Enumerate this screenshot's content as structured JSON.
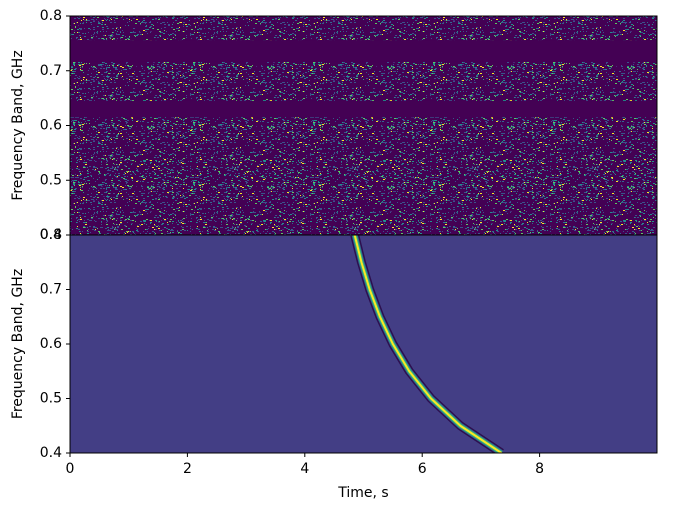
{
  "chart_data": [
    {
      "type": "noise_heatmap",
      "ylabel": "Frequency Band, GHz",
      "xlim": [
        0,
        10
      ],
      "ylim": [
        0.4,
        0.8
      ],
      "yticks": [
        0.4,
        0.5,
        0.6,
        0.7,
        0.8
      ],
      "masked_bands": [
        [
          0.615,
          0.645
        ],
        [
          0.716,
          0.756
        ]
      ],
      "color": "#440154"
    },
    {
      "type": "dispersed_pulse",
      "ylabel": "Frequency Band, GHz",
      "xlabel": "Time, s",
      "xlim": [
        0,
        10
      ],
      "ylim": [
        0.4,
        0.8
      ],
      "xticks": [
        0,
        2,
        4,
        6,
        8
      ],
      "yticks": [
        0.4,
        0.5,
        0.6,
        0.7,
        0.8
      ],
      "x": [
        4.85,
        4.965,
        5.105,
        5.28,
        5.5,
        5.78,
        6.15,
        6.65,
        7.35
      ],
      "y": [
        0.8,
        0.75,
        0.7,
        0.65,
        0.6,
        0.55,
        0.5,
        0.45,
        0.4
      ],
      "color": "#fde725"
    }
  ]
}
